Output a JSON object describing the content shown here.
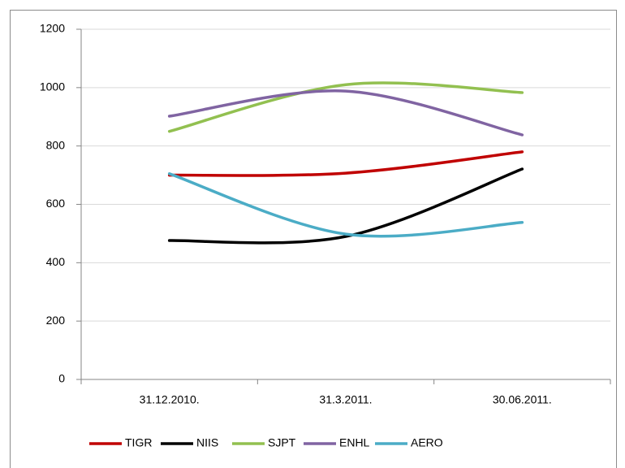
{
  "chart_data": {
    "type": "line",
    "categories": [
      "31.12.2010.",
      "31.3.2011.",
      "30.06.2011."
    ],
    "series": [
      {
        "name": "TIGR",
        "color": "#c00000",
        "values": [
          700,
          707,
          780
        ]
      },
      {
        "name": "NIIS",
        "color": "#000000",
        "values": [
          476,
          490,
          721
        ]
      },
      {
        "name": "SJPT",
        "color": "#92c050",
        "values": [
          850,
          1010,
          983
        ]
      },
      {
        "name": "ENHL",
        "color": "#8064a2",
        "values": [
          902,
          988,
          838
        ]
      },
      {
        "name": "AERO",
        "color": "#4bacc6",
        "values": [
          705,
          498,
          538
        ]
      }
    ],
    "ylim": [
      0,
      1200
    ],
    "yticks": [
      0,
      200,
      400,
      600,
      800,
      1000,
      1200
    ],
    "grid": true,
    "smooth": true,
    "legend": "bottom"
  }
}
